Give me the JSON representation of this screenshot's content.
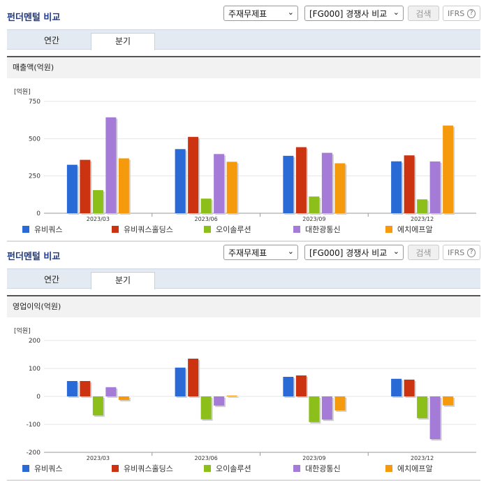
{
  "sections": [
    {
      "title": "펀더멘털 비교",
      "select_statement": "주재무제표",
      "select_group": "[FG000] 경쟁사 비교",
      "search_label": "검색",
      "ifrs_label": "IFRS",
      "ifrs_help": "?",
      "tabs": [
        {
          "label": "연간"
        },
        {
          "label": "분기"
        }
      ],
      "active_tab": "분기",
      "panel_title": "매출액(억원)",
      "unit_label": "[억원]"
    },
    {
      "title": "펀더멘털 비교",
      "select_statement": "주재무제표",
      "select_group": "[FG000] 경쟁사 비교",
      "search_label": "검색",
      "ifrs_label": "IFRS",
      "ifrs_help": "?",
      "tabs": [
        {
          "label": "연간"
        },
        {
          "label": "분기"
        }
      ],
      "active_tab": "분기",
      "panel_title": "영업이익(억원)",
      "unit_label": "[억원]"
    }
  ],
  "chart_data": [
    {
      "type": "bar",
      "categories": [
        "2023/03",
        "2023/06",
        "2023/09",
        "2023/12"
      ],
      "ylim": [
        0,
        750
      ],
      "yticks": [
        0,
        250,
        500,
        750
      ],
      "series": [
        {
          "name": "유비쿼스",
          "color": "#2a6ad6",
          "values": [
            325,
            430,
            385,
            348
          ]
        },
        {
          "name": "유비쿼스홀딩스",
          "color": "#cc3310",
          "values": [
            358,
            512,
            443,
            388
          ]
        },
        {
          "name": "오이솔루션",
          "color": "#8cbf1a",
          "values": [
            155,
            98,
            112,
            93
          ]
        },
        {
          "name": "대한광통신",
          "color": "#a57bd8",
          "values": [
            643,
            397,
            405,
            347
          ]
        },
        {
          "name": "에치에프알",
          "color": "#f49a0c",
          "values": [
            368,
            345,
            335,
            588
          ]
        }
      ],
      "legend": "bottom",
      "grid": true
    },
    {
      "type": "bar",
      "categories": [
        "2023/03",
        "2023/06",
        "2023/09",
        "2023/12"
      ],
      "ylim": [
        -200,
        200
      ],
      "yticks": [
        -200,
        -100,
        0,
        100,
        200
      ],
      "series": [
        {
          "name": "유비쿼스",
          "color": "#2a6ad6",
          "values": [
            55,
            103,
            70,
            63
          ]
        },
        {
          "name": "유비쿼스홀딩스",
          "color": "#cc3310",
          "values": [
            55,
            135,
            75,
            60
          ]
        },
        {
          "name": "오이솔루션",
          "color": "#8cbf1a",
          "values": [
            -68,
            -82,
            -92,
            -78
          ]
        },
        {
          "name": "대한광통신",
          "color": "#a57bd8",
          "values": [
            33,
            -33,
            -83,
            -153
          ]
        },
        {
          "name": "에치에프알",
          "color": "#f49a0c",
          "values": [
            -13,
            3,
            -50,
            -32
          ]
        }
      ],
      "legend": "bottom",
      "grid": true
    }
  ]
}
